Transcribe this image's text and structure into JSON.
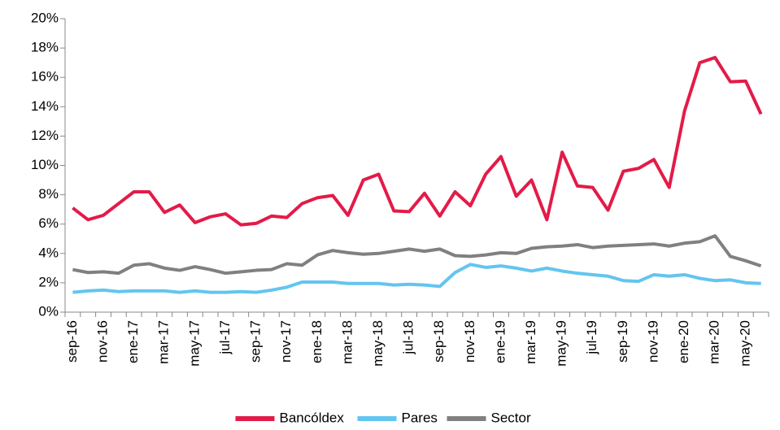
{
  "chart_data": {
    "type": "line",
    "categories": [
      "sep-16",
      null,
      "nov-16",
      null,
      "ene-17",
      null,
      "mar-17",
      null,
      "may-17",
      null,
      "jul-17",
      null,
      "sep-17",
      null,
      "nov-17",
      null,
      "ene-18",
      null,
      "mar-18",
      null,
      "may-18",
      null,
      "jul-18",
      null,
      "sep-18",
      null,
      "nov-18",
      null,
      "ene-19",
      null,
      "mar-19",
      null,
      "may-19",
      null,
      "jul-19",
      null,
      "sep-19",
      null,
      "nov-19",
      null,
      "ene-20",
      null,
      "mar-20",
      null,
      "may-20",
      null
    ],
    "series": [
      {
        "name": "Bancóldex",
        "color": "#e31b48",
        "values": [
          7.1,
          6.3,
          6.6,
          7.4,
          8.2,
          8.2,
          6.8,
          7.3,
          6.1,
          6.5,
          6.7,
          5.95,
          6.05,
          6.55,
          6.45,
          7.4,
          7.8,
          7.95,
          6.6,
          9.0,
          9.4,
          6.9,
          6.85,
          8.1,
          6.55,
          8.2,
          7.25,
          9.4,
          10.6,
          7.9,
          9.0,
          6.3,
          10.9,
          8.6,
          8.5,
          6.95,
          9.6,
          9.8,
          10.4,
          8.5,
          13.7,
          17.0,
          17.35,
          15.7,
          15.75,
          13.5
        ]
      },
      {
        "name": "Pares",
        "color": "#63c5ef",
        "values": [
          1.35,
          1.45,
          1.5,
          1.4,
          1.45,
          1.45,
          1.45,
          1.35,
          1.45,
          1.35,
          1.35,
          1.4,
          1.35,
          1.5,
          1.7,
          2.05,
          2.05,
          2.05,
          1.95,
          1.95,
          1.95,
          1.85,
          1.9,
          1.85,
          1.75,
          2.7,
          3.25,
          3.05,
          3.15,
          3.0,
          2.8,
          3.0,
          2.8,
          2.65,
          2.55,
          2.45,
          2.15,
          2.1,
          2.55,
          2.45,
          2.55,
          2.3,
          2.15,
          2.2,
          2.0,
          1.95
        ]
      },
      {
        "name": "Sector",
        "color": "#808080",
        "values": [
          2.9,
          2.7,
          2.75,
          2.65,
          3.2,
          3.3,
          3.0,
          2.85,
          3.1,
          2.9,
          2.65,
          2.75,
          2.85,
          2.9,
          3.3,
          3.2,
          3.9,
          4.2,
          4.05,
          3.95,
          4.0,
          4.15,
          4.3,
          4.15,
          4.3,
          3.85,
          3.8,
          3.9,
          4.05,
          4.0,
          4.35,
          4.45,
          4.5,
          4.6,
          4.4,
          4.5,
          4.55,
          4.6,
          4.65,
          4.5,
          4.7,
          4.8,
          5.2,
          3.8,
          3.5,
          3.15
        ]
      }
    ],
    "ylim": [
      0,
      20
    ],
    "yticks": [
      {
        "value": 0,
        "label": "0%"
      },
      {
        "value": 2,
        "label": "2%"
      },
      {
        "value": 4,
        "label": "4%"
      },
      {
        "value": 6,
        "label": "6%"
      },
      {
        "value": 8,
        "label": "8%"
      },
      {
        "value": 10,
        "label": "10%"
      },
      {
        "value": 12,
        "label": "12%"
      },
      {
        "value": 14,
        "label": "14%"
      },
      {
        "value": 16,
        "label": "16%"
      },
      {
        "value": 18,
        "label": "18%"
      },
      {
        "value": 20,
        "label": "20%"
      }
    ],
    "grid": false,
    "legend": "bottom"
  }
}
